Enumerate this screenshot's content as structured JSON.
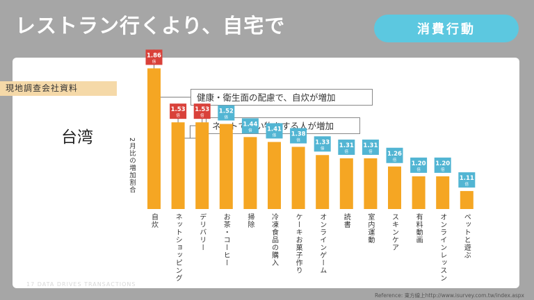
{
  "header": {
    "title": "レストラン行くより、自宅で",
    "badge": "消費行動"
  },
  "source_tag": "現地調查会社資料",
  "region": "台湾",
  "callouts": [
    "健康・衛生面の配慮で、自炊が増加",
    "ネットで買い物をする人が増加"
  ],
  "footer": {
    "page_text": "17 DATA DRIVES TRANSACTIONS",
    "reference": "Reference: 東方線上http://www.isurvey.com.tw/index.aspx"
  },
  "chart_data": {
    "type": "bar",
    "ylabel": "2月比の増加割合",
    "value_suffix": "倍",
    "categories": [
      "自炊",
      "ネットショッピング",
      "デリバリー",
      "お茶・コーヒー",
      "掃除",
      "冷凍食品の購入",
      "ケーキお菓子作り",
      "オンラインゲーム",
      "読書",
      "室内運動",
      "スキンケア",
      "有料動画",
      "オンラインレッスン",
      "ペットと遊ぶ"
    ],
    "values": [
      1.86,
      1.53,
      1.53,
      1.52,
      1.44,
      1.41,
      1.38,
      1.33,
      1.31,
      1.31,
      1.26,
      1.2,
      1.2,
      1.11
    ],
    "label_colors": [
      "#d9413a",
      "#d9413a",
      "#d9413a",
      "#52b5d3",
      "#52b5d3",
      "#52b5d3",
      "#52b5d3",
      "#52b5d3",
      "#52b5d3",
      "#52b5d3",
      "#52b5d3",
      "#52b5d3",
      "#52b5d3",
      "#52b5d3"
    ],
    "bar_color": "#f5a623",
    "ylim": [
      1.0,
      1.9
    ],
    "grid": false,
    "legend": "none"
  }
}
